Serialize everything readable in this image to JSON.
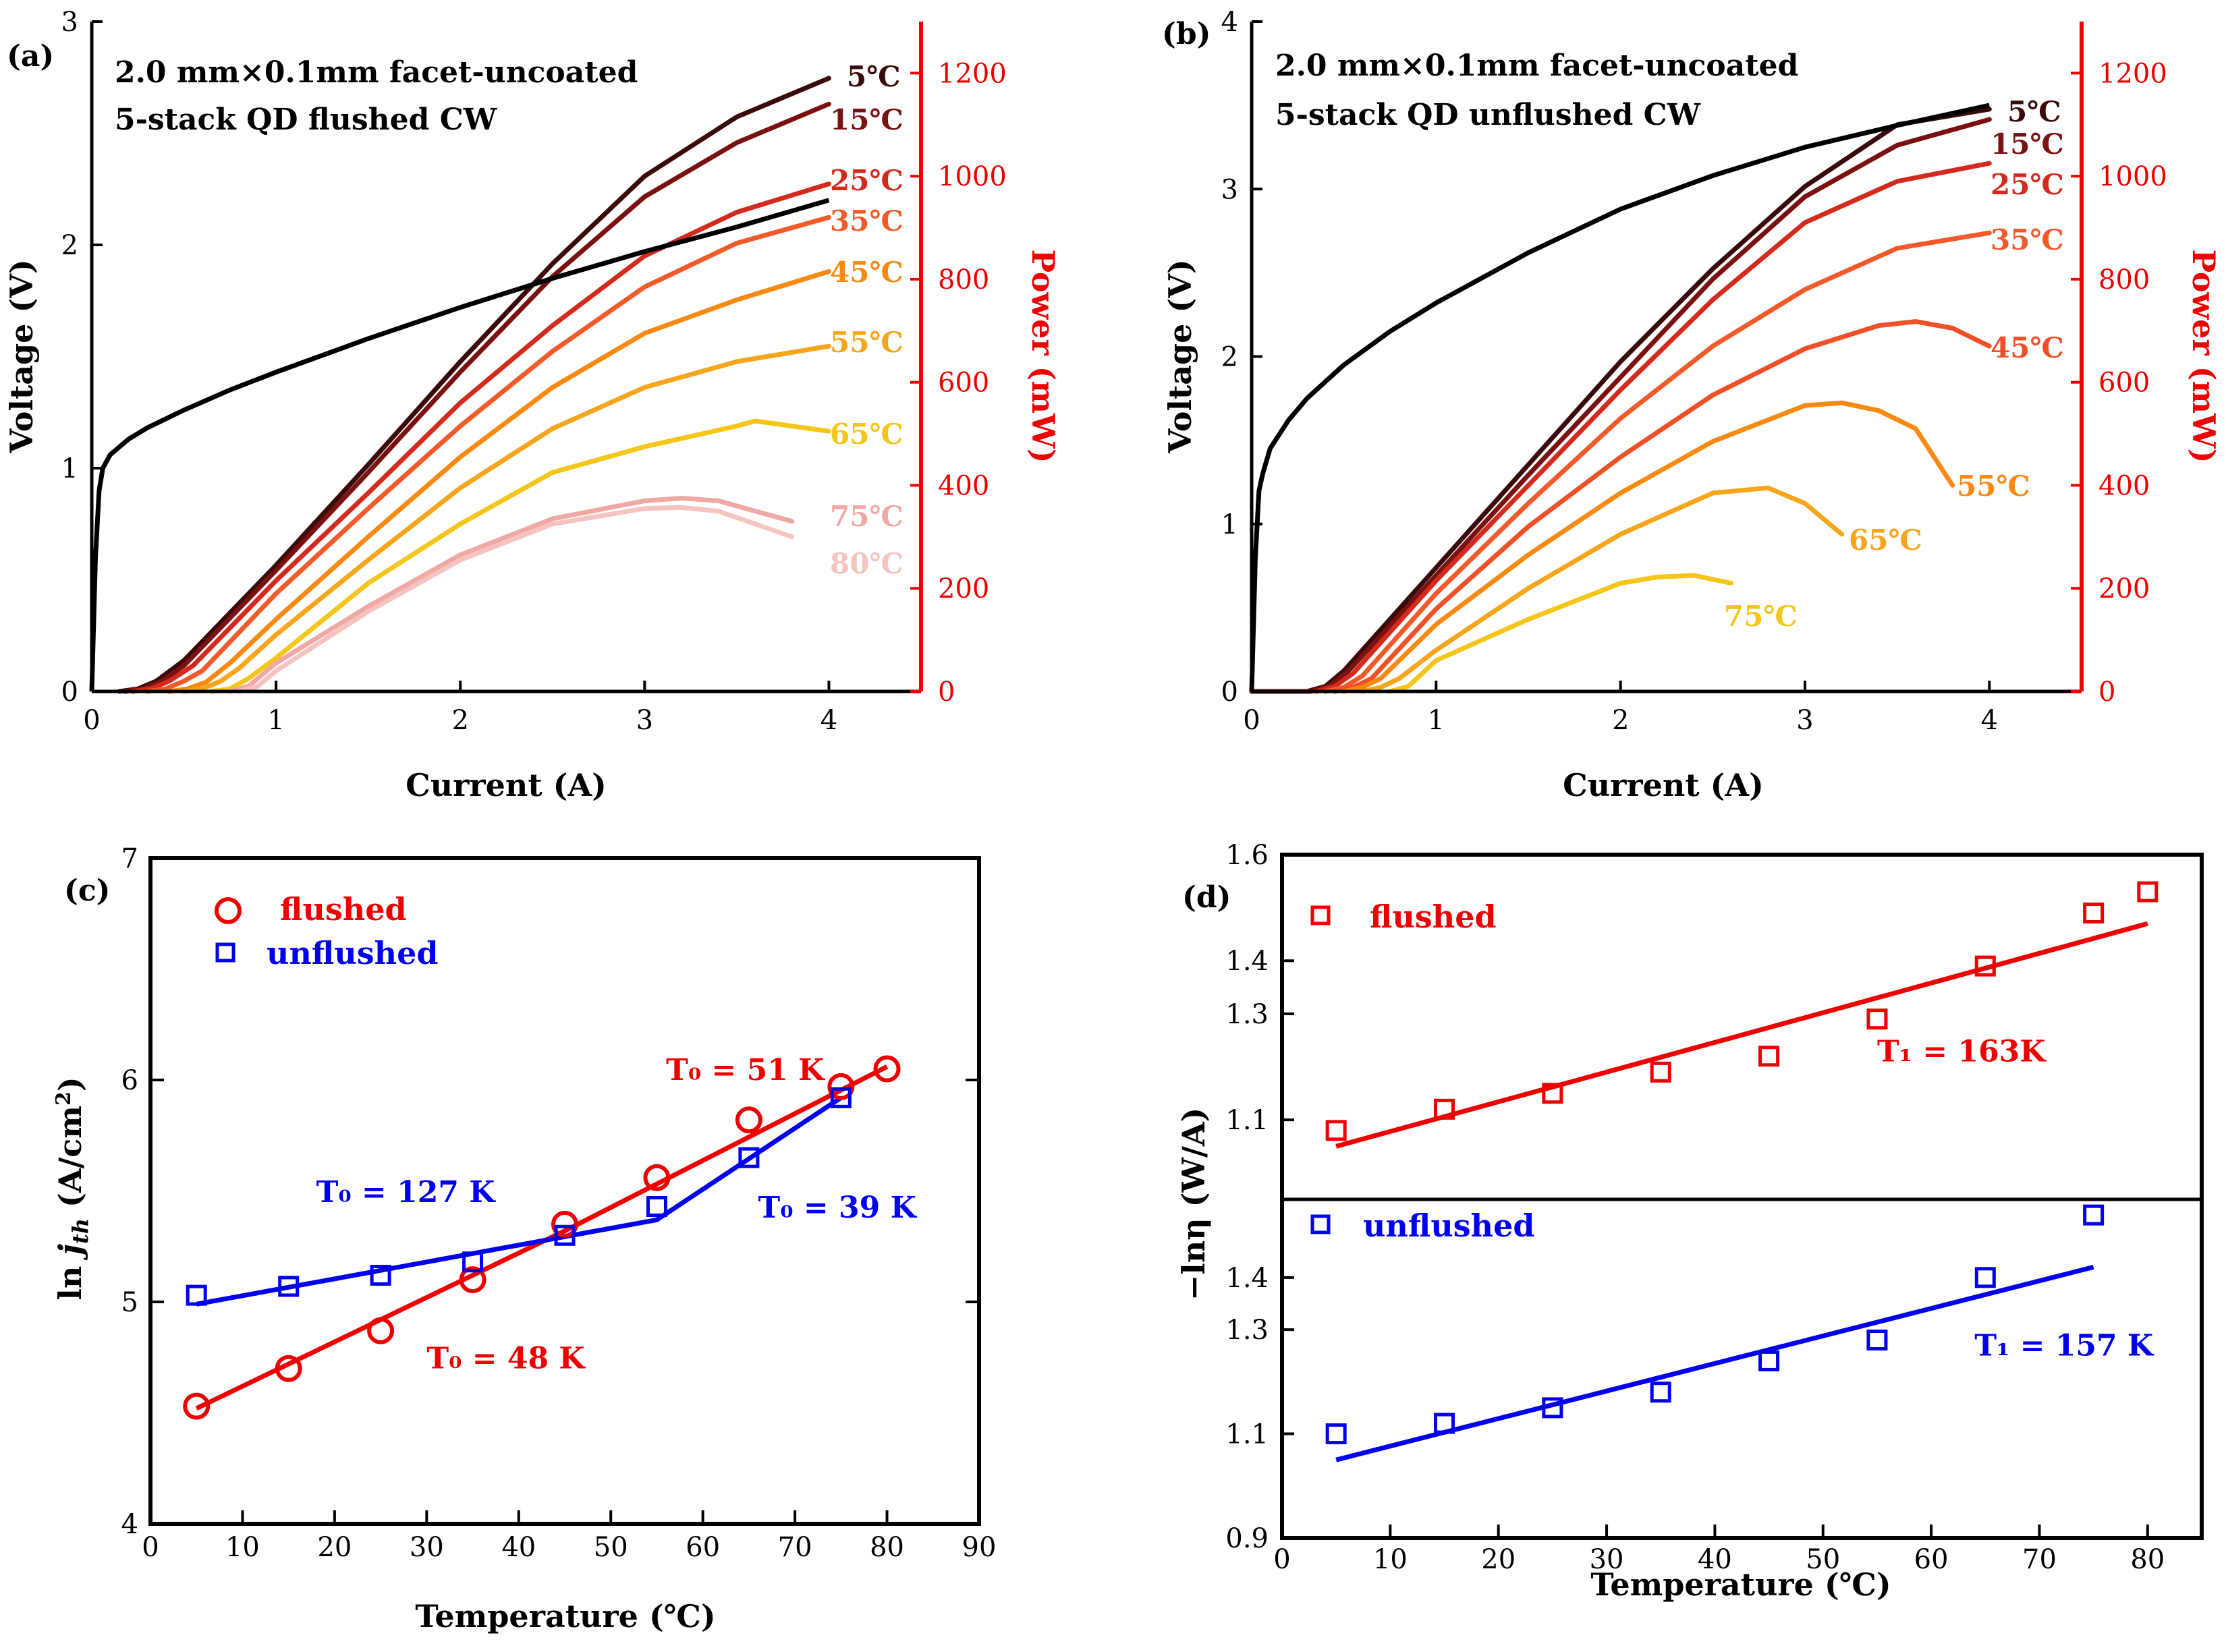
{
  "chart_data": [
    {
      "id": "a",
      "type": "line",
      "panel_label": "(a)",
      "title_lines": [
        "2.0 mm×0.1mm facet-uncoated",
        "5-stack QD flushed CW"
      ],
      "xlabel": "Current (A)",
      "ylabel": "Voltage (V)",
      "y2label": "Power (mW)",
      "xlim": [
        0,
        4.5
      ],
      "ylim": [
        0,
        3
      ],
      "y2lim": [
        0,
        1300
      ],
      "xticks": [
        0,
        1,
        2,
        3,
        4
      ],
      "yticks": [
        0,
        1,
        2,
        3
      ],
      "y2ticks": [
        0,
        200,
        400,
        600,
        800,
        1000,
        1200
      ],
      "voltage": {
        "name": "Voltage",
        "color": "#000000",
        "x": [
          0,
          0.02,
          0.04,
          0.06,
          0.1,
          0.2,
          0.3,
          0.5,
          0.75,
          1,
          1.5,
          2,
          2.5,
          3,
          3.5,
          4
        ],
        "y": [
          0,
          0.6,
          0.9,
          1.0,
          1.06,
          1.13,
          1.18,
          1.26,
          1.35,
          1.43,
          1.58,
          1.72,
          1.85,
          1.97,
          2.08,
          2.2
        ]
      },
      "power_series": [
        {
          "name": "5℃",
          "color": "#3a0a0a",
          "x": [
            0.15,
            0.25,
            0.35,
            0.5,
            1,
            1.5,
            2,
            2.5,
            3,
            3.5,
            4
          ],
          "y": [
            0,
            5,
            20,
            60,
            245,
            440,
            640,
            830,
            1000,
            1115,
            1190
          ]
        },
        {
          "name": "15℃",
          "color": "#7a1010",
          "x": [
            0.18,
            0.28,
            0.38,
            0.5,
            1,
            1.5,
            2,
            2.5,
            3,
            3.5,
            4
          ],
          "y": [
            0,
            5,
            20,
            50,
            235,
            425,
            620,
            805,
            960,
            1065,
            1140
          ]
        },
        {
          "name": "25℃",
          "color": "#d42a1e",
          "x": [
            0.22,
            0.32,
            0.42,
            0.55,
            1,
            1.5,
            2,
            2.5,
            3,
            3.5,
            4
          ],
          "y": [
            0,
            5,
            20,
            50,
            215,
            385,
            560,
            710,
            845,
            930,
            985
          ]
        },
        {
          "name": "35℃",
          "color": "#f25a2a",
          "x": [
            0.3,
            0.4,
            0.5,
            0.6,
            1,
            1.5,
            2,
            2.5,
            3,
            3.5,
            4
          ],
          "y": [
            0,
            5,
            20,
            40,
            190,
            355,
            515,
            660,
            785,
            870,
            920
          ]
        },
        {
          "name": "45℃",
          "color": "#f88a12",
          "x": [
            0.42,
            0.52,
            0.62,
            0.75,
            1,
            1.5,
            2,
            2.5,
            3,
            3.5,
            4
          ],
          "y": [
            0,
            5,
            18,
            55,
            140,
            300,
            455,
            590,
            695,
            760,
            815
          ]
        },
        {
          "name": "55℃",
          "color": "#f7a51a",
          "x": [
            0.5,
            0.6,
            0.7,
            0.8,
            1,
            1.5,
            2,
            2.5,
            3,
            3.5,
            4
          ],
          "y": [
            0,
            5,
            20,
            45,
            110,
            255,
            395,
            510,
            590,
            640,
            670
          ]
        },
        {
          "name": "65℃",
          "color": "#f5c518",
          "x": [
            0.65,
            0.75,
            0.85,
            1,
            1.5,
            2,
            2.5,
            3,
            3.5,
            3.6,
            4
          ],
          "y": [
            0,
            5,
            25,
            65,
            210,
            325,
            425,
            475,
            515,
            525,
            505
          ]
        },
        {
          "name": "75℃",
          "color": "#f0a8a4",
          "x": [
            0.75,
            0.85,
            1,
            1.5,
            2,
            2.5,
            3,
            3.2,
            3.4,
            3.8
          ],
          "y": [
            0,
            10,
            55,
            165,
            265,
            335,
            370,
            375,
            370,
            330
          ]
        },
        {
          "name": "80℃",
          "color": "#f6c4c0",
          "x": [
            0.8,
            0.9,
            1,
            1.5,
            2,
            2.5,
            3,
            3.2,
            3.4,
            3.8
          ],
          "y": [
            0,
            10,
            40,
            155,
            255,
            325,
            355,
            357,
            350,
            300
          ]
        }
      ]
    },
    {
      "id": "b",
      "type": "line",
      "panel_label": "(b)",
      "title_lines": [
        "2.0 mm×0.1mm facet-uncoated",
        "5-stack QD unflushed CW"
      ],
      "xlabel": "Current (A)",
      "ylabel": "Voltage (V)",
      "y2label": "Power (mW)",
      "xlim": [
        0,
        4.5
      ],
      "ylim": [
        0,
        4
      ],
      "y2lim": [
        0,
        1300
      ],
      "xticks": [
        0,
        1,
        2,
        3,
        4
      ],
      "yticks": [
        0,
        1,
        2,
        3,
        4
      ],
      "y2ticks": [
        0,
        200,
        400,
        600,
        800,
        1000,
        1200
      ],
      "voltage": {
        "name": "Voltage",
        "color": "#000000",
        "x": [
          0,
          0.02,
          0.04,
          0.06,
          0.1,
          0.2,
          0.3,
          0.5,
          0.75,
          1,
          1.5,
          2,
          2.5,
          3,
          3.5,
          4
        ],
        "y": [
          0,
          0.8,
          1.2,
          1.3,
          1.45,
          1.62,
          1.75,
          1.95,
          2.15,
          2.32,
          2.62,
          2.88,
          3.08,
          3.25,
          3.38,
          3.5
        ]
      },
      "power_series": [
        {
          "name": "5℃",
          "color": "#3a0a0a",
          "x": [
            0,
            0.3,
            0.4,
            0.5,
            1,
            1.5,
            2,
            2.5,
            3,
            3.5,
            4
          ],
          "y": [
            0,
            0,
            10,
            40,
            240,
            440,
            640,
            820,
            980,
            1100,
            1130
          ]
        },
        {
          "name": "15℃",
          "color": "#7a1010",
          "x": [
            0,
            0.32,
            0.42,
            0.52,
            1,
            1.5,
            2,
            2.5,
            3,
            3.5,
            4
          ],
          "y": [
            0,
            0,
            10,
            38,
            225,
            420,
            610,
            800,
            960,
            1060,
            1110
          ]
        },
        {
          "name": "25℃",
          "color": "#d42a1e",
          "x": [
            0.35,
            0.45,
            0.55,
            1,
            1.5,
            2,
            2.5,
            3,
            3.5,
            4
          ],
          "y": [
            0,
            10,
            35,
            215,
            400,
            585,
            760,
            910,
            990,
            1025
          ]
        },
        {
          "name": "35℃",
          "color": "#f25a2a",
          "x": [
            0.4,
            0.5,
            0.6,
            1,
            1.5,
            2,
            2.5,
            3,
            3.5,
            4
          ],
          "y": [
            0,
            8,
            30,
            190,
            365,
            530,
            670,
            780,
            860,
            890
          ]
        },
        {
          "name": "45℃",
          "color": "#f05028",
          "x": [
            0.45,
            0.55,
            0.65,
            1,
            1.5,
            2,
            2.5,
            3,
            3.4,
            3.6,
            3.8,
            4
          ],
          "y": [
            0,
            8,
            25,
            160,
            320,
            455,
            575,
            665,
            710,
            718,
            705,
            670
          ]
        },
        {
          "name": "55℃",
          "color": "#f88a12",
          "x": [
            0.5,
            0.6,
            0.7,
            1,
            1.5,
            2,
            2.5,
            3,
            3.2,
            3.4,
            3.6,
            3.8
          ],
          "y": [
            0,
            8,
            25,
            130,
            265,
            385,
            485,
            555,
            560,
            545,
            510,
            400
          ]
        },
        {
          "name": "65℃",
          "color": "#f7a51a",
          "x": [
            0.6,
            0.7,
            0.8,
            1,
            1.5,
            2,
            2.5,
            2.8,
            3,
            3.2
          ],
          "y": [
            0,
            8,
            25,
            80,
            200,
            305,
            385,
            395,
            365,
            305
          ]
        },
        {
          "name": "75℃",
          "color": "#f5c518",
          "x": [
            0.75,
            0.85,
            1,
            1.5,
            2,
            2.2,
            2.4,
            2.6
          ],
          "y": [
            0,
            10,
            60,
            140,
            210,
            222,
            225,
            210
          ]
        }
      ]
    },
    {
      "id": "c",
      "type": "scatter",
      "panel_label": "(c)",
      "xlabel": "Temperature (℃)",
      "ylabel": "ln j_th (A/cm²)",
      "xlim": [
        0,
        90
      ],
      "ylim": [
        4,
        7
      ],
      "xticks": [
        0,
        10,
        20,
        30,
        40,
        50,
        60,
        70,
        80,
        90
      ],
      "yticks": [
        4,
        5,
        6,
        7
      ],
      "series": [
        {
          "name": "flushed",
          "color": "#ee0000",
          "marker": "circle",
          "x": [
            5,
            15,
            25,
            35,
            45,
            55,
            65,
            75,
            80
          ],
          "y": [
            4.53,
            4.7,
            4.87,
            5.1,
            5.35,
            5.56,
            5.82,
            5.97,
            6.05
          ]
        },
        {
          "name": "unflushed",
          "color": "#0000ee",
          "marker": "square",
          "x": [
            5,
            15,
            25,
            35,
            45,
            55,
            65,
            75
          ],
          "y": [
            5.03,
            5.07,
            5.12,
            5.18,
            5.3,
            5.43,
            5.65,
            5.92
          ]
        }
      ],
      "fits": [
        {
          "color": "#ee0000",
          "x": [
            5,
            45,
            80
          ],
          "y": [
            4.52,
            5.32,
            6.06
          ]
        },
        {
          "color": "#0000ee",
          "x": [
            5,
            55,
            75
          ],
          "y": [
            4.99,
            5.37,
            5.92
          ]
        }
      ],
      "annotations": [
        {
          "color": "#ee0000",
          "text": "T₀ = 51 K",
          "x": 56,
          "y": 6.0
        },
        {
          "color": "#0000ee",
          "text": "T₀ = 127 K",
          "x": 18,
          "y": 5.45
        },
        {
          "color": "#0000ee",
          "text": "T₀ = 39 K",
          "x": 66,
          "y": 5.38
        },
        {
          "color": "#ee0000",
          "text": "T₀ = 48 K",
          "x": 30,
          "y": 4.7
        }
      ]
    },
    {
      "id": "d",
      "type": "scatter",
      "panel_label": "(d)",
      "xlabel": "Temperature (℃)",
      "ylabel": "−lnη (W/A)",
      "xlim": [
        0,
        85
      ],
      "xticks": [
        0,
        10,
        20,
        30,
        40,
        50,
        60,
        70,
        80
      ],
      "subplots": [
        {
          "name": "flushed",
          "color": "#ee0000",
          "ylim": [
            0.95,
            1.6
          ],
          "yticks": [
            1.1,
            1.3,
            1.4,
            1.6
          ],
          "ytick_labels": [
            "1.1",
            "1.3",
            "1.4",
            "1.6"
          ],
          "x": [
            5,
            15,
            25,
            35,
            45,
            55,
            65,
            75,
            80
          ],
          "y": [
            1.08,
            1.12,
            1.15,
            1.19,
            1.22,
            1.29,
            1.39,
            1.49,
            1.53
          ],
          "fit": {
            "x": [
              5,
              80
            ],
            "y": [
              1.05,
              1.47
            ]
          },
          "annotation": {
            "text": "T₁ = 163K",
            "x": 55,
            "y": 1.21
          }
        },
        {
          "name": "unflushed",
          "color": "#0000ee",
          "ylim": [
            0.9,
            1.55
          ],
          "yticks": [
            0.9,
            1.1,
            1.3,
            1.4
          ],
          "ytick_labels": [
            "0.9",
            "1.1",
            "1.3",
            "1.4"
          ],
          "x": [
            5,
            15,
            25,
            35,
            45,
            55,
            65,
            75
          ],
          "y": [
            1.1,
            1.12,
            1.15,
            1.18,
            1.24,
            1.28,
            1.4,
            1.52
          ],
          "fit": {
            "x": [
              5,
              75
            ],
            "y": [
              1.05,
              1.42
            ]
          },
          "annotation": {
            "text": "T₁ = 157 K",
            "x": 64,
            "y": 1.25
          }
        }
      ]
    }
  ]
}
